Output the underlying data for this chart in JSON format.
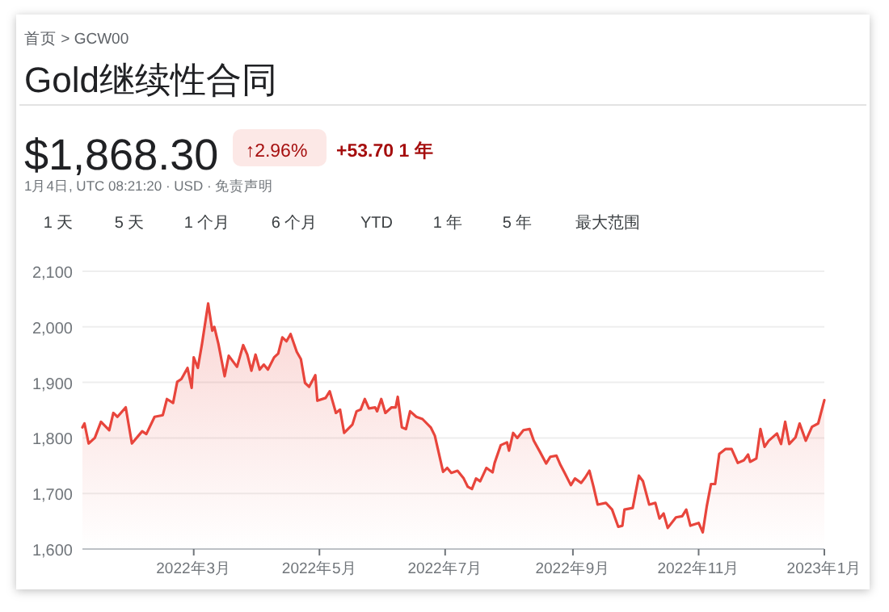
{
  "chart_data": {
    "type": "area",
    "title": "Gold继续性合同",
    "annotations": [
      "首页 > GCW00",
      "$1,868.30",
      "↑2.96%",
      "+53.70 1 年",
      "1月4日, UTC 08:21:20 · USD · 免责声明",
      "1 天",
      "5 天",
      "1 个月",
      "6 个月",
      "YTD",
      "1 年",
      "5 年",
      "最大范围"
    ],
    "x": [
      "2022-01-06",
      "2022-01-07",
      "2022-01-09",
      "2022-01-12",
      "2022-01-15",
      "2022-01-19",
      "2022-01-21",
      "2022-01-23",
      "2022-01-27",
      "2022-01-30",
      "2022-02-04",
      "2022-02-06",
      "2022-02-10",
      "2022-02-14",
      "2022-02-16",
      "2022-02-19",
      "2022-02-21",
      "2022-02-23",
      "2022-02-26",
      "2022-02-28",
      "2022-03-01",
      "2022-03-03",
      "2022-03-05",
      "2022-03-08",
      "2022-03-10",
      "2022-03-11",
      "2022-03-13",
      "2022-03-16",
      "2022-03-18",
      "2022-03-22",
      "2022-03-25",
      "2022-03-27",
      "2022-03-29",
      "2022-03-31",
      "2022-04-02",
      "2022-04-04",
      "2022-04-06",
      "2022-04-09",
      "2022-04-11",
      "2022-04-13",
      "2022-04-15",
      "2022-04-17",
      "2022-04-20",
      "2022-04-22",
      "2022-04-24",
      "2022-04-26",
      "2022-04-29",
      "2022-04-30",
      "2022-05-04",
      "2022-05-06",
      "2022-05-09",
      "2022-05-11",
      "2022-05-13",
      "2022-05-17",
      "2022-05-19",
      "2022-05-21",
      "2022-05-23",
      "2022-05-25",
      "2022-05-28",
      "2022-05-29",
      "2022-05-31",
      "2022-06-02",
      "2022-06-05",
      "2022-06-07",
      "2022-06-08",
      "2022-06-10",
      "2022-06-12",
      "2022-06-14",
      "2022-06-17",
      "2022-06-20",
      "2022-06-24",
      "2022-06-26",
      "2022-06-30",
      "2022-07-02",
      "2022-07-04",
      "2022-07-07",
      "2022-07-10",
      "2022-07-12",
      "2022-07-14",
      "2022-07-16",
      "2022-07-18",
      "2022-07-21",
      "2022-07-24",
      "2022-07-25",
      "2022-07-28",
      "2022-07-31",
      "2022-08-01",
      "2022-08-03",
      "2022-08-05",
      "2022-08-08",
      "2022-08-11",
      "2022-08-13",
      "2022-08-16",
      "2022-08-19",
      "2022-08-21",
      "2022-08-24",
      "2022-08-26",
      "2022-08-28",
      "2022-08-31",
      "2022-09-02",
      "2022-09-05",
      "2022-09-07",
      "2022-09-09",
      "2022-09-11",
      "2022-09-13",
      "2022-09-17",
      "2022-09-20",
      "2022-09-23",
      "2022-09-25",
      "2022-09-26",
      "2022-09-30",
      "2022-10-03",
      "2022-10-05",
      "2022-10-08",
      "2022-10-11",
      "2022-10-13",
      "2022-10-15",
      "2022-10-17",
      "2022-10-21",
      "2022-10-24",
      "2022-10-26",
      "2022-10-28",
      "2022-11-01",
      "2022-11-03",
      "2022-11-05",
      "2022-11-07",
      "2022-11-09",
      "2022-11-11",
      "2022-11-14",
      "2022-11-17",
      "2022-11-20",
      "2022-11-23",
      "2022-11-25",
      "2022-11-26",
      "2022-11-29",
      "2022-12-01",
      "2022-12-03",
      "2022-12-05",
      "2022-12-09",
      "2022-12-11",
      "2022-12-13",
      "2022-12-15",
      "2022-12-18",
      "2022-12-20",
      "2022-12-23",
      "2022-12-26",
      "2022-12-29",
      "2023-01-01"
    ],
    "series": [
      {
        "color": "#e8453c",
        "values": [
          1819,
          1826,
          1790,
          1800,
          1829,
          1814,
          1845,
          1838,
          1855,
          1790,
          1812,
          1807,
          1838,
          1841,
          1870,
          1863,
          1901,
          1906,
          1926,
          1890,
          1945,
          1926,
          1969,
          2042,
          1993,
          2000,
          1969,
          1911,
          1948,
          1928,
          1967,
          1950,
          1921,
          1950,
          1923,
          1932,
          1923,
          1945,
          1952,
          1981,
          1974,
          1987,
          1955,
          1942,
          1899,
          1892,
          1913,
          1867,
          1872,
          1884,
          1845,
          1851,
          1809,
          1824,
          1848,
          1851,
          1870,
          1853,
          1855,
          1848,
          1870,
          1845,
          1855,
          1855,
          1874,
          1819,
          1816,
          1848,
          1838,
          1834,
          1819,
          1804,
          1739,
          1746,
          1737,
          1741,
          1727,
          1712,
          1708,
          1727,
          1722,
          1746,
          1738,
          1755,
          1787,
          1792,
          1777,
          1809,
          1800,
          1814,
          1816,
          1795,
          1775,
          1754,
          1766,
          1768,
          1751,
          1737,
          1715,
          1727,
          1719,
          1729,
          1741,
          1712,
          1680,
          1683,
          1671,
          1640,
          1642,
          1671,
          1674,
          1732,
          1722,
          1680,
          1683,
          1655,
          1664,
          1638,
          1657,
          1659,
          1671,
          1642,
          1647,
          1630,
          1678,
          1717,
          1717,
          1771,
          1780,
          1780,
          1755,
          1760,
          1770,
          1757,
          1763,
          1816,
          1784,
          1795,
          1808,
          1789,
          1829,
          1789,
          1801,
          1826,
          1795,
          1820,
          1826,
          1868
        ]
      }
    ],
    "xlim": [
      "2022-01-06",
      "2023-01-01"
    ],
    "xticks": [
      {
        "value": "2022-03-01",
        "label": "2022年3月"
      },
      {
        "value": "2022-05-01",
        "label": "2022年5月"
      },
      {
        "value": "2022-07-01",
        "label": "2022年7月"
      },
      {
        "value": "2022-09-01",
        "label": "2022年9月"
      },
      {
        "value": "2022-11-01",
        "label": "2022年11月"
      },
      {
        "value": "2023-01-01",
        "label": "2023年1月"
      }
    ],
    "ylim": [
      1600,
      2100
    ],
    "yticks": [
      {
        "value": 1600,
        "label": "1,600"
      },
      {
        "value": 1700,
        "label": "1,700"
      },
      {
        "value": 1800,
        "label": "1,800"
      },
      {
        "value": 1900,
        "label": "1,900"
      },
      {
        "value": 2000,
        "label": "2,000"
      },
      {
        "value": 2100,
        "label": "2,100"
      }
    ],
    "grid": "y"
  }
}
